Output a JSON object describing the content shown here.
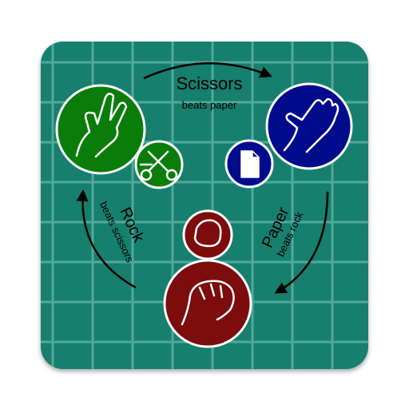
{
  "icon": {
    "title": "Rock Paper Scissors"
  },
  "labels": {
    "scissors": {
      "title": "Scissors",
      "subtitle": "beats paper"
    },
    "rock": {
      "title": "Rock",
      "subtitle": "beats scissors"
    },
    "paper": {
      "title": "Paper",
      "subtitle": "beats rock"
    }
  },
  "colors": {
    "tile": "#127f6e",
    "grid": "#58ad9f",
    "scissors": "#0a7c0a",
    "paper": "#000c8c",
    "rock": "#7d0c0c",
    "stroke": "#ffffff",
    "text": "#000000"
  },
  "icons": [
    "victory-hand-icon",
    "scissors-icon",
    "open-hand-icon",
    "document-icon",
    "fist-icon",
    "stone-icon",
    "cycle-arrow-icon"
  ]
}
